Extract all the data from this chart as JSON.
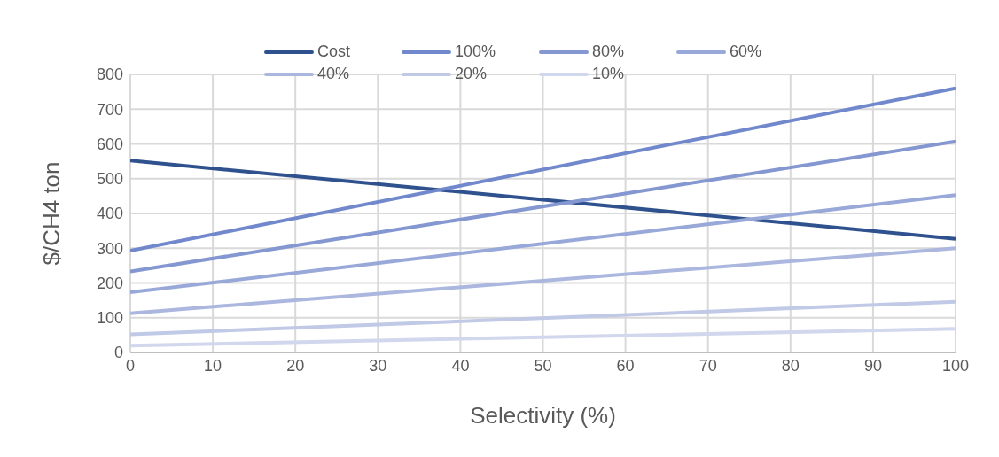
{
  "chart_data": {
    "type": "line",
    "xlabel": "Selectivity (%)",
    "ylabel": "$/CH4 ton",
    "x": [
      0,
      100
    ],
    "series": [
      {
        "name": "Cost",
        "color": "#2f528f",
        "values": [
          552,
          327
        ]
      },
      {
        "name": "100%",
        "color": "#7189cc",
        "values": [
          293,
          760
        ]
      },
      {
        "name": "80%",
        "color": "#8497d1",
        "values": [
          233,
          607
        ]
      },
      {
        "name": "60%",
        "color": "#98a8d8",
        "values": [
          173,
          453
        ]
      },
      {
        "name": "40%",
        "color": "#abb7de",
        "values": [
          113,
          300
        ]
      },
      {
        "name": "20%",
        "color": "#c0c9e5",
        "values": [
          52,
          146
        ]
      },
      {
        "name": "10%",
        "color": "#d1d7ec",
        "values": [
          20,
          68
        ]
      }
    ],
    "xlim": [
      0,
      100
    ],
    "xticks": [
      0,
      10,
      20,
      30,
      40,
      50,
      60,
      70,
      80,
      90,
      100
    ],
    "ylim": [
      0,
      800
    ],
    "yticks": [
      0,
      100,
      200,
      300,
      400,
      500,
      600,
      700,
      800
    ],
    "grid": true,
    "legend": "top",
    "marker": "none",
    "line_style": "solid"
  }
}
